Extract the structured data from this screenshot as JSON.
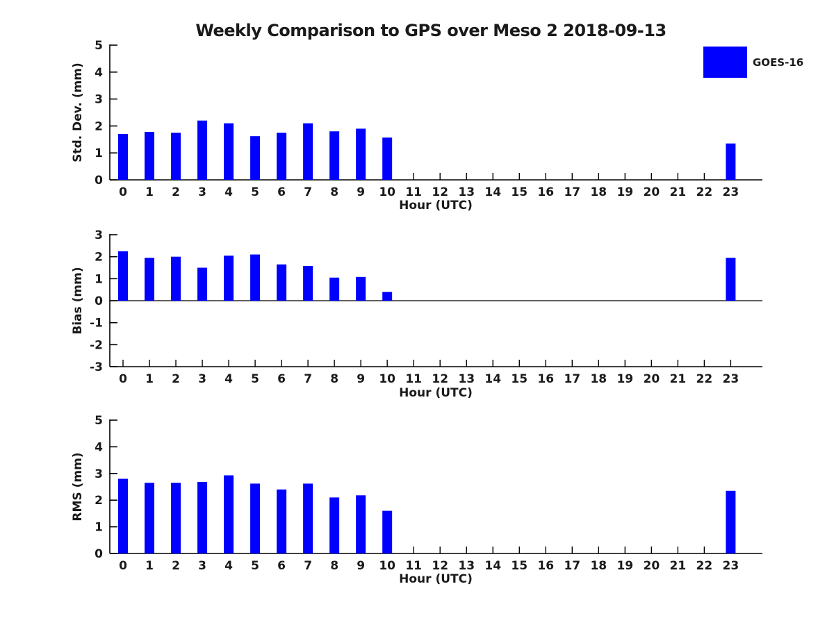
{
  "title": "Weekly Comparison to GPS over Meso 2 2018-09-13",
  "legend": {
    "label": "GOES-16",
    "color": "#0000ff"
  },
  "bar_color": "#0000ff",
  "chart_data": [
    {
      "type": "bar",
      "title": "",
      "ylabel": "Std. Dev. (mm)",
      "xlabel": "Hour (UTC)",
      "ylim": [
        0,
        5
      ],
      "yticks": [
        0,
        1,
        2,
        3,
        4,
        5
      ],
      "grid": false,
      "legend_position": "upper-right-outside",
      "categories": [
        "0",
        "1",
        "2",
        "3",
        "4",
        "5",
        "6",
        "7",
        "8",
        "9",
        "10",
        "11",
        "12",
        "13",
        "14",
        "15",
        "16",
        "17",
        "18",
        "19",
        "20",
        "21",
        "22",
        "23"
      ],
      "series": [
        {
          "name": "GOES-16",
          "values": [
            1.7,
            1.78,
            1.75,
            2.2,
            2.1,
            1.62,
            1.75,
            2.1,
            1.8,
            1.9,
            1.57,
            null,
            null,
            null,
            null,
            null,
            null,
            null,
            null,
            null,
            null,
            null,
            null,
            1.35
          ]
        }
      ]
    },
    {
      "type": "bar",
      "title": "",
      "ylabel": "Bias (mm)",
      "xlabel": "Hour (UTC)",
      "ylim": [
        -3,
        3
      ],
      "yticks": [
        -3,
        -2,
        -1,
        0,
        1,
        2,
        3
      ],
      "grid": false,
      "categories": [
        "0",
        "1",
        "2",
        "3",
        "4",
        "5",
        "6",
        "7",
        "8",
        "9",
        "10",
        "11",
        "12",
        "13",
        "14",
        "15",
        "16",
        "17",
        "18",
        "19",
        "20",
        "21",
        "22",
        "23"
      ],
      "series": [
        {
          "name": "GOES-16",
          "values": [
            2.25,
            1.95,
            2.0,
            1.5,
            2.05,
            2.1,
            1.65,
            1.58,
            1.05,
            1.08,
            0.4,
            null,
            null,
            null,
            null,
            null,
            null,
            null,
            null,
            null,
            null,
            null,
            null,
            1.95
          ]
        }
      ]
    },
    {
      "type": "bar",
      "title": "",
      "ylabel": "RMS (mm)",
      "xlabel": "Hour (UTC)",
      "ylim": [
        0,
        5
      ],
      "yticks": [
        0,
        1,
        2,
        3,
        4,
        5
      ],
      "grid": false,
      "categories": [
        "0",
        "1",
        "2",
        "3",
        "4",
        "5",
        "6",
        "7",
        "8",
        "9",
        "10",
        "11",
        "12",
        "13",
        "14",
        "15",
        "16",
        "17",
        "18",
        "19",
        "20",
        "21",
        "22",
        "23"
      ],
      "series": [
        {
          "name": "GOES-16",
          "values": [
            2.8,
            2.65,
            2.65,
            2.68,
            2.93,
            2.62,
            2.4,
            2.62,
            2.1,
            2.18,
            1.6,
            null,
            null,
            null,
            null,
            null,
            null,
            null,
            null,
            null,
            null,
            null,
            null,
            2.35
          ]
        }
      ]
    }
  ]
}
